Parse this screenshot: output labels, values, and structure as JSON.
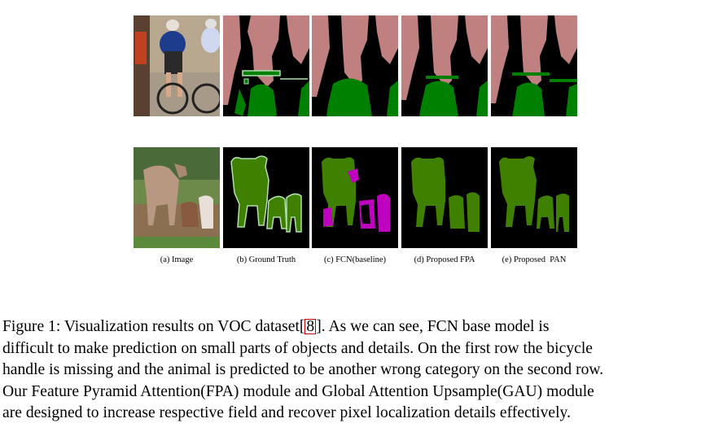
{
  "figure": {
    "columns": [
      {
        "id": "a",
        "label": "(a) Image"
      },
      {
        "id": "b",
        "label": "(b) Ground Truth"
      },
      {
        "id": "c",
        "label": "(c) FCN(baseline)"
      },
      {
        "id": "d",
        "label": "(d) Proposed FPA"
      },
      {
        "id": "e",
        "label": "(e) Proposed  PAN"
      }
    ],
    "rows": [
      "cyclists",
      "cattle"
    ],
    "colors": {
      "person": "#c08080",
      "bicycle": "#008000",
      "cow": "#408000",
      "wrong_class": "#c000c0",
      "background": "#000000",
      "boundary": "#b0e0b0"
    }
  },
  "caption": {
    "line1_before": "Figure 1:  Visualization results on VOC dataset[",
    "cite": "8",
    "line1_after": "].  As we can see, FCN base model is",
    "line2": "difficult to make prediction on small parts of objects and details. On the first row the bicycle",
    "line3": "handle is missing and the animal is predicted to be another wrong category on the second row.",
    "line4": "Our Feature Pyramid Attention(FPA) module and Global Attention Upsample(GAU) module",
    "line5": "are designed to increase respective field and recover pixel localization details effectively."
  }
}
